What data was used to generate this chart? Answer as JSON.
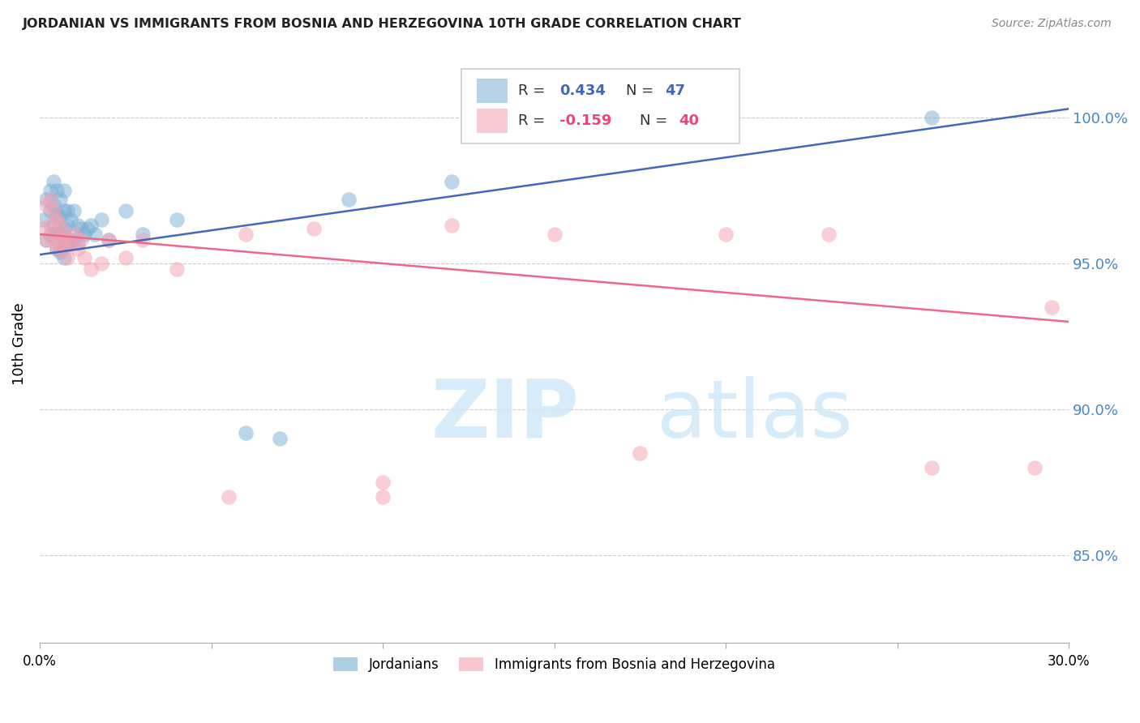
{
  "title": "JORDANIAN VS IMMIGRANTS FROM BOSNIA AND HERZEGOVINA 10TH GRADE CORRELATION CHART",
  "source": "Source: ZipAtlas.com",
  "ylabel": "10th Grade",
  "blue_color": "#7BAFD4",
  "pink_color": "#F4A0B0",
  "blue_line_color": "#4466BB",
  "pink_line_color": "#EE6688",
  "xlim": [
    0.0,
    0.3
  ],
  "ylim": [
    0.82,
    1.025
  ],
  "yticks": [
    0.85,
    0.9,
    0.95,
    1.0
  ],
  "ytick_labels": [
    "85.0%",
    "90.0%",
    "95.0%",
    "100.0%"
  ],
  "blue_trendline": [
    0.953,
    1.003
  ],
  "pink_trendline": [
    0.96,
    0.93
  ],
  "jordanians_x": [
    0.001,
    0.002,
    0.002,
    0.003,
    0.003,
    0.003,
    0.004,
    0.004,
    0.004,
    0.005,
    0.005,
    0.005,
    0.005,
    0.006,
    0.006,
    0.006,
    0.006,
    0.007,
    0.007,
    0.007,
    0.007,
    0.007,
    0.008,
    0.008,
    0.008,
    0.009,
    0.009,
    0.01,
    0.01,
    0.011,
    0.011,
    0.012,
    0.013,
    0.014,
    0.015,
    0.016,
    0.018,
    0.02,
    0.025,
    0.03,
    0.04,
    0.06,
    0.07,
    0.09,
    0.12,
    0.2,
    0.26
  ],
  "jordanians_y": [
    0.965,
    0.972,
    0.958,
    0.975,
    0.968,
    0.96,
    0.978,
    0.97,
    0.963,
    0.975,
    0.967,
    0.96,
    0.955,
    0.972,
    0.966,
    0.96,
    0.954,
    0.975,
    0.968,
    0.962,
    0.957,
    0.952,
    0.968,
    0.963,
    0.957,
    0.965,
    0.958,
    0.968,
    0.958,
    0.963,
    0.957,
    0.962,
    0.96,
    0.962,
    0.963,
    0.96,
    0.965,
    0.958,
    0.968,
    0.96,
    0.965,
    0.892,
    0.89,
    0.972,
    0.978,
    0.998,
    1.0
  ],
  "bosnia_x": [
    0.001,
    0.002,
    0.002,
    0.003,
    0.003,
    0.004,
    0.004,
    0.005,
    0.005,
    0.005,
    0.006,
    0.006,
    0.007,
    0.007,
    0.008,
    0.008,
    0.009,
    0.01,
    0.011,
    0.012,
    0.013,
    0.015,
    0.018,
    0.02,
    0.025,
    0.03,
    0.04,
    0.06,
    0.08,
    0.1,
    0.12,
    0.15,
    0.2,
    0.23,
    0.26,
    0.29,
    0.295,
    0.1,
    0.175,
    0.055
  ],
  "bosnia_y": [
    0.962,
    0.97,
    0.958,
    0.972,
    0.963,
    0.968,
    0.958,
    0.965,
    0.96,
    0.955,
    0.963,
    0.957,
    0.96,
    0.955,
    0.958,
    0.952,
    0.957,
    0.96,
    0.955,
    0.958,
    0.952,
    0.948,
    0.95,
    0.958,
    0.952,
    0.958,
    0.948,
    0.96,
    0.962,
    0.875,
    0.963,
    0.96,
    0.96,
    0.96,
    0.88,
    0.88,
    0.935,
    0.87,
    0.885,
    0.87
  ]
}
